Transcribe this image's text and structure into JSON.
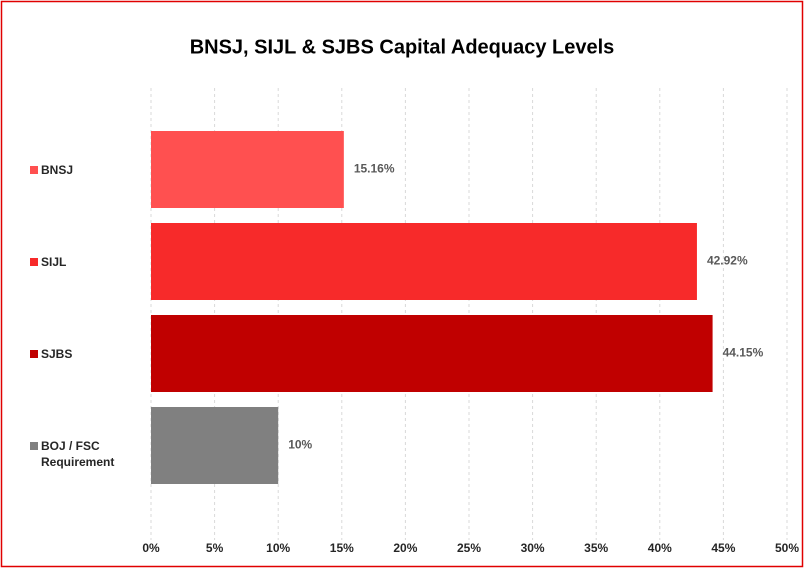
{
  "chart_data": {
    "type": "bar",
    "orientation": "horizontal",
    "title": "BNSJ, SIJL & SJBS Capital Adequacy Levels",
    "categories": [
      "BNSJ",
      "SIJL",
      "SJBS",
      "BOJ / FSC Requirement"
    ],
    "values": [
      15.16,
      42.92,
      44.15,
      10
    ],
    "value_labels": [
      "15.16%",
      "42.92%",
      "44.15%",
      "10%"
    ],
    "colors": [
      "#ff5050",
      "#f72a2a",
      "#c00000",
      "#808080"
    ],
    "xlim": [
      0,
      50
    ],
    "xticks": [
      {
        "value": 0,
        "label": "0%"
      },
      {
        "value": 5,
        "label": "5%"
      },
      {
        "value": 10,
        "label": "10%"
      },
      {
        "value": 15,
        "label": "15%"
      },
      {
        "value": 20,
        "label": "20%"
      },
      {
        "value": 25,
        "label": "25%"
      },
      {
        "value": 30,
        "label": "30%"
      },
      {
        "value": 35,
        "label": "35%"
      },
      {
        "value": 40,
        "label": "40%"
      },
      {
        "value": 45,
        "label": "45%"
      },
      {
        "value": 50,
        "label": "50%"
      }
    ],
    "grid": true
  }
}
